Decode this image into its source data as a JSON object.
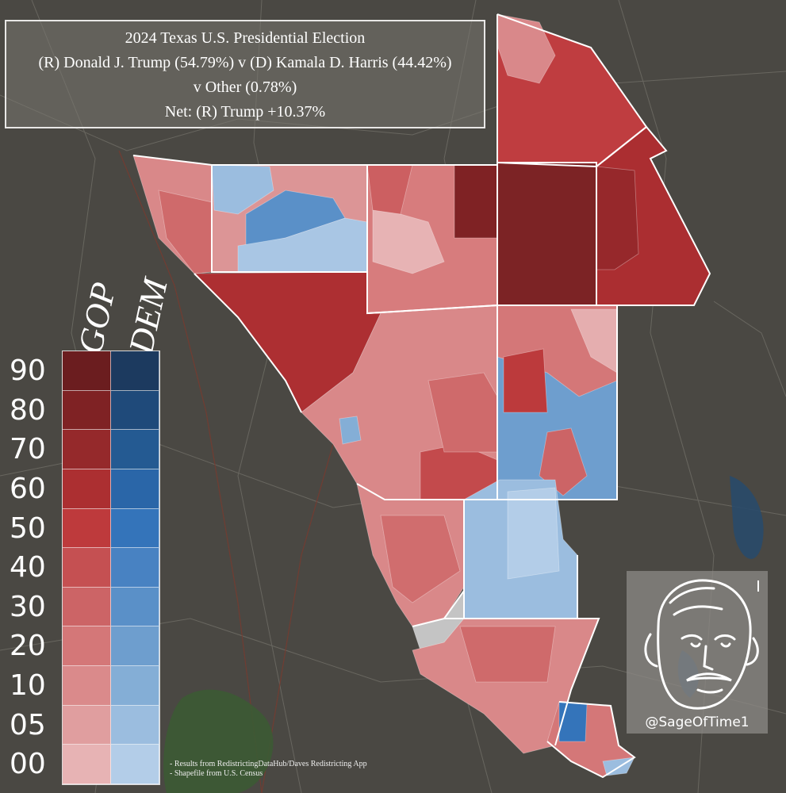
{
  "title": {
    "line1": "2024 Texas U.S. Presidential Election",
    "line2": "(R) Donald J. Trump (54.79%) v (D) Kamala D. Harris (44.42%)",
    "line3": "v Other (0.78%)",
    "line4": "Net: (R) Trump +10.37%"
  },
  "legend": {
    "gop_label": "GOP",
    "dem_label": "DEM",
    "levels": [
      "90",
      "80",
      "70",
      "60",
      "50",
      "40",
      "30",
      "20",
      "10",
      "05",
      "00"
    ],
    "gop_colors": [
      "#6b1d1f",
      "#7f2224",
      "#95292b",
      "#ac2f31",
      "#be3a3c",
      "#c55052",
      "#cc6466",
      "#d47778",
      "#da8a8b",
      "#e09e9f",
      "#e7b3b4"
    ],
    "dem_colors": [
      "#1c3a5f",
      "#1f4a7a",
      "#245a92",
      "#2a66a8",
      "#3474ba",
      "#4882c2",
      "#5a90c8",
      "#6e9ece",
      "#84aed6",
      "#9bbddf",
      "#b3cde8"
    ]
  },
  "credits": {
    "line1": "- Results from RedistrictingDataHub/Daves Redistricting App",
    "line2": "- Shapefile from U.S. Census"
  },
  "watermark": {
    "handle": "@SageOfTime1"
  }
}
